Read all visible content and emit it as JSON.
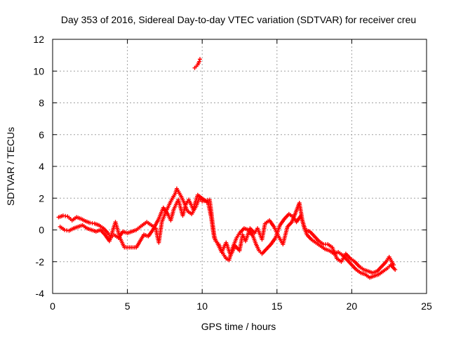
{
  "chart_data": {
    "type": "scatter",
    "title": "Day 353 of 2016, Sidereal Day-to-day VTEC variation (SDTVAR) for receiver creu",
    "xlabel": "GPS time / hours",
    "ylabel": "SDTVAR / TECUs",
    "xlim": [
      0,
      25
    ],
    "ylim": [
      -4,
      12
    ],
    "xticks": [
      0,
      5,
      10,
      15,
      20,
      25
    ],
    "yticks": [
      -4,
      -2,
      0,
      2,
      4,
      6,
      8,
      10,
      12
    ],
    "grid": true,
    "marker": "+",
    "marker_color": "#ff0000",
    "series": [
      {
        "name": "SDTVAR",
        "trace_a": [
          [
            0.4,
            0.8
          ],
          [
            0.7,
            0.9
          ],
          [
            1.0,
            0.85
          ],
          [
            1.3,
            0.6
          ],
          [
            1.6,
            0.8
          ],
          [
            1.9,
            0.7
          ],
          [
            2.2,
            0.55
          ],
          [
            2.5,
            0.45
          ],
          [
            2.8,
            0.4
          ],
          [
            3.1,
            0.3
          ],
          [
            3.4,
            0.1
          ],
          [
            3.7,
            -0.2
          ],
          [
            3.9,
            -0.5
          ],
          [
            4.1,
            -0.3
          ],
          [
            4.4,
            -0.5
          ],
          [
            4.7,
            -0.1
          ],
          [
            5.0,
            -0.2
          ],
          [
            5.6,
            0.0
          ],
          [
            6.0,
            0.3
          ],
          [
            6.3,
            0.5
          ],
          [
            6.6,
            0.3
          ],
          [
            6.9,
            0.1
          ],
          [
            7.0,
            -0.4
          ],
          [
            7.1,
            -0.8
          ],
          [
            7.3,
            0.5
          ],
          [
            7.6,
            1.2
          ],
          [
            7.9,
            1.8
          ],
          [
            8.2,
            2.3
          ],
          [
            8.3,
            2.6
          ],
          [
            8.6,
            2.1
          ],
          [
            8.8,
            1.7
          ],
          [
            9.0,
            1.2
          ],
          [
            9.3,
            1.0
          ],
          [
            9.6,
            1.5
          ],
          [
            9.8,
            2.0
          ],
          [
            10.0,
            1.8
          ],
          [
            10.5,
            1.9
          ],
          [
            10.6,
            1.2
          ],
          [
            10.7,
            0.4
          ],
          [
            10.8,
            -0.3
          ],
          [
            10.9,
            -0.7
          ],
          [
            11.1,
            -0.9
          ],
          [
            11.4,
            -1.5
          ],
          [
            11.6,
            -1.8
          ],
          [
            11.8,
            -1.9
          ],
          [
            12.0,
            -1.2
          ],
          [
            12.3,
            -0.5
          ],
          [
            12.5,
            -0.2
          ],
          [
            12.8,
            0.1
          ],
          [
            13.1,
            0.0
          ],
          [
            13.4,
            -0.4
          ],
          [
            13.6,
            -0.9
          ],
          [
            13.8,
            -1.3
          ],
          [
            14.0,
            -1.5
          ],
          [
            14.3,
            -1.2
          ],
          [
            14.6,
            -0.9
          ],
          [
            14.9,
            -0.5
          ],
          [
            15.2,
            0.3
          ],
          [
            15.5,
            0.7
          ],
          [
            15.8,
            1.0
          ],
          [
            16.1,
            0.8
          ],
          [
            16.3,
            0.5
          ],
          [
            16.6,
            0.9
          ],
          [
            16.8,
            0.2
          ],
          [
            17.0,
            -0.3
          ],
          [
            17.3,
            -0.6
          ],
          [
            17.6,
            -0.8
          ],
          [
            17.9,
            -1.0
          ],
          [
            18.2,
            -1.2
          ],
          [
            18.5,
            -1.3
          ],
          [
            18.8,
            -1.5
          ],
          [
            19.1,
            -1.4
          ],
          [
            19.4,
            -1.6
          ],
          [
            19.7,
            -1.9
          ],
          [
            20.0,
            -2.2
          ],
          [
            20.3,
            -2.5
          ],
          [
            20.6,
            -2.7
          ],
          [
            20.9,
            -2.8
          ],
          [
            21.2,
            -3.0
          ],
          [
            21.5,
            -2.9
          ],
          [
            21.8,
            -2.8
          ],
          [
            22.1,
            -2.6
          ],
          [
            22.4,
            -2.4
          ],
          [
            22.6,
            -2.2
          ],
          [
            22.9,
            -2.5
          ]
        ],
        "trace_b": [
          [
            0.5,
            0.2
          ],
          [
            0.8,
            0.0
          ],
          [
            1.1,
            -0.05
          ],
          [
            1.4,
            0.1
          ],
          [
            1.7,
            0.2
          ],
          [
            2.0,
            0.3
          ],
          [
            2.3,
            0.1
          ],
          [
            2.6,
            0.0
          ],
          [
            2.9,
            -0.1
          ],
          [
            3.2,
            0.0
          ],
          [
            3.5,
            -0.3
          ],
          [
            3.8,
            -0.7
          ],
          [
            4.2,
            0.5
          ],
          [
            4.5,
            -0.5
          ],
          [
            4.8,
            -1.1
          ],
          [
            5.6,
            -1.1
          ],
          [
            6.1,
            -0.3
          ],
          [
            6.4,
            -0.4
          ],
          [
            6.7,
            0.0
          ],
          [
            7.1,
            0.7
          ],
          [
            7.4,
            1.4
          ],
          [
            7.7,
            1.0
          ],
          [
            7.9,
            0.6
          ],
          [
            8.1,
            1.3
          ],
          [
            8.4,
            1.9
          ],
          [
            8.7,
            0.9
          ],
          [
            8.9,
            1.6
          ],
          [
            9.1,
            1.9
          ],
          [
            9.4,
            1.3
          ],
          [
            9.7,
            2.2
          ],
          [
            10.4,
            1.7
          ],
          [
            10.6,
            0.8
          ],
          [
            10.8,
            -0.5
          ],
          [
            11.0,
            -0.8
          ],
          [
            11.3,
            -1.4
          ],
          [
            11.6,
            -0.8
          ],
          [
            11.9,
            -1.6
          ],
          [
            12.2,
            -1.0
          ],
          [
            12.5,
            -1.3
          ],
          [
            12.7,
            -0.3
          ],
          [
            12.9,
            -0.7
          ],
          [
            13.2,
            0.1
          ],
          [
            13.5,
            -0.2
          ],
          [
            13.7,
            0.1
          ],
          [
            14.0,
            -0.6
          ],
          [
            14.2,
            0.4
          ],
          [
            14.5,
            0.6
          ],
          [
            14.8,
            0.2
          ],
          [
            15.1,
            -0.4
          ],
          [
            15.4,
            -0.9
          ],
          [
            15.7,
            0.2
          ],
          [
            16.0,
            0.5
          ],
          [
            16.5,
            1.7
          ],
          [
            16.7,
            0.6
          ],
          [
            16.9,
            0.0
          ],
          [
            17.2,
            -0.1
          ],
          [
            17.5,
            -0.4
          ],
          [
            17.8,
            -0.7
          ],
          [
            18.1,
            -0.9
          ],
          [
            18.4,
            -0.9
          ],
          [
            18.7,
            -1.1
          ],
          [
            19.0,
            -1.8
          ],
          [
            19.3,
            -2.0
          ],
          [
            19.6,
            -1.5
          ],
          [
            19.9,
            -1.8
          ],
          [
            20.2,
            -2.0
          ],
          [
            20.5,
            -2.3
          ],
          [
            20.8,
            -2.5
          ],
          [
            21.1,
            -2.6
          ],
          [
            21.4,
            -2.7
          ],
          [
            21.7,
            -2.6
          ],
          [
            22.0,
            -2.3
          ],
          [
            22.3,
            -2.0
          ],
          [
            22.5,
            -1.7
          ],
          [
            22.8,
            -2.2
          ]
        ],
        "outlier_cluster": [
          [
            9.5,
            10.2
          ],
          [
            9.6,
            10.3
          ],
          [
            9.7,
            10.4
          ],
          [
            9.8,
            10.6
          ],
          [
            9.85,
            10.75
          ]
        ]
      }
    ]
  }
}
